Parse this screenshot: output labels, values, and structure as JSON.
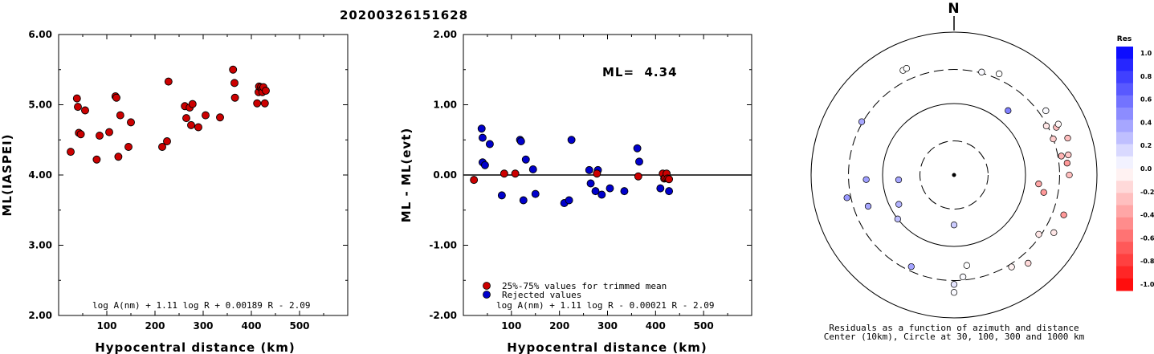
{
  "title": "20200326151628",
  "chart_data": [
    {
      "type": "scatter",
      "xlabel": "Hypocentral distance (km)",
      "ylabel": "ML(IASPEI)",
      "xlim": [
        0,
        600
      ],
      "ylim": [
        2.0,
        6.0
      ],
      "x_ticks": [
        "100",
        "200",
        "300",
        "400",
        "500"
      ],
      "y_ticks": [
        "2.00",
        "3.00",
        "4.00",
        "5.00",
        "6.00"
      ],
      "formula": "log A(nm) + 1.11 log R + 0.00189 R - 2.09",
      "series": [
        {
          "color": "#cc0000",
          "points": [
            [
              25,
              4.33
            ],
            [
              38,
              5.09
            ],
            [
              40,
              4.97
            ],
            [
              42,
              4.6
            ],
            [
              46,
              4.58
            ],
            [
              55,
              4.92
            ],
            [
              79,
              4.22
            ],
            [
              85,
              4.56
            ],
            [
              105,
              4.61
            ],
            [
              118,
              5.12
            ],
            [
              120,
              5.1
            ],
            [
              124,
              4.26
            ],
            [
              128,
              4.85
            ],
            [
              145,
              4.4
            ],
            [
              150,
              4.75
            ],
            [
              215,
              4.4
            ],
            [
              225,
              4.48
            ],
            [
              228,
              5.33
            ],
            [
              262,
              4.98
            ],
            [
              265,
              4.81
            ],
            [
              272,
              4.96
            ],
            [
              275,
              4.71
            ],
            [
              278,
              5.01
            ],
            [
              290,
              4.68
            ],
            [
              305,
              4.85
            ],
            [
              335,
              4.82
            ],
            [
              362,
              5.5
            ],
            [
              365,
              5.31
            ],
            [
              366,
              5.1
            ],
            [
              412,
              5.02
            ],
            [
              415,
              5.18
            ],
            [
              416,
              5.26
            ],
            [
              420,
              5.25
            ],
            [
              422,
              5.22
            ],
            [
              423,
              5.18
            ],
            [
              425,
              5.25
            ],
            [
              428,
              5.02
            ],
            [
              430,
              5.2
            ]
          ]
        }
      ]
    },
    {
      "type": "scatter",
      "xlabel": "Hypocentral distance (km)",
      "ylabel": "ML - ML(evt)",
      "xlim": [
        0,
        600
      ],
      "ylim": [
        -2.0,
        2.0
      ],
      "x_ticks": [
        "100",
        "200",
        "300",
        "400",
        "500"
      ],
      "y_ticks": [
        "-2.00",
        "-1.00",
        "0.00",
        "1.00",
        "2.00"
      ],
      "annotation": "ML=  4.34",
      "formula": "log A(nm) + 1.11 log R - 0.00021 R - 2.09",
      "legend": [
        {
          "label": "25%-75% values for trimmed mean",
          "color": "#cc0000"
        },
        {
          "label": "Rejected values",
          "color": "#0000cc"
        }
      ],
      "series": [
        {
          "name": "25%-75% values for trimmed mean",
          "color": "#cc0000",
          "points": [
            [
              22,
              -0.07
            ],
            [
              85,
              0.02
            ],
            [
              108,
              0.02
            ],
            [
              278,
              0.02
            ],
            [
              364,
              -0.02
            ],
            [
              415,
              0.02
            ],
            [
              418,
              -0.05
            ],
            [
              420,
              -0.04
            ],
            [
              423,
              0.02
            ],
            [
              425,
              -0.05
            ],
            [
              428,
              -0.06
            ]
          ]
        },
        {
          "name": "Rejected values",
          "color": "#0000cc",
          "points": [
            [
              38,
              0.66
            ],
            [
              40,
              0.53
            ],
            [
              40,
              0.18
            ],
            [
              45,
              0.14
            ],
            [
              55,
              0.44
            ],
            [
              80,
              -0.29
            ],
            [
              118,
              0.5
            ],
            [
              120,
              0.48
            ],
            [
              125,
              -0.36
            ],
            [
              130,
              0.22
            ],
            [
              145,
              0.08
            ],
            [
              150,
              -0.27
            ],
            [
              210,
              -0.4
            ],
            [
              220,
              -0.36
            ],
            [
              225,
              0.5
            ],
            [
              262,
              0.07
            ],
            [
              265,
              -0.12
            ],
            [
              275,
              -0.23
            ],
            [
              280,
              0.07
            ],
            [
              288,
              -0.28
            ],
            [
              305,
              -0.19
            ],
            [
              335,
              -0.23
            ],
            [
              362,
              0.38
            ],
            [
              366,
              0.19
            ],
            [
              410,
              -0.19
            ],
            [
              428,
              -0.23
            ]
          ]
        }
      ]
    },
    {
      "type": "polar-scatter",
      "north_label": "N",
      "caption_line1": "Residuals as a function of azimuth and distance",
      "caption_line2": "Center (10km), Circle at 30, 100, 300 and 1000 km",
      "ring_distances_km": [
        30,
        100,
        300,
        1000
      ],
      "colorbar_title": "Res",
      "colorbar_ticks": [
        "1.0",
        "0.8",
        "0.6",
        "0.4",
        "0.2",
        "0.0",
        "-0.2",
        "-0.4",
        "-0.6",
        "-0.8",
        "-1.0"
      ],
      "points": [
        {
          "azimuth": 334,
          "distance_km": 425,
          "residual": 0.0
        },
        {
          "azimuth": 336,
          "distance_km": 430,
          "residual": 0.0
        },
        {
          "azimuth": 15,
          "distance_km": 310,
          "residual": 0.02
        },
        {
          "azimuth": 24,
          "distance_km": 355,
          "residual": 0.0
        },
        {
          "azimuth": 55,
          "distance_km": 370,
          "residual": 0.02
        },
        {
          "azimuth": 40,
          "distance_km": 150,
          "residual": 0.5
        },
        {
          "azimuth": 62,
          "distance_km": 290,
          "residual": -0.1
        },
        {
          "azimuth": 65,
          "distance_km": 380,
          "residual": -0.25
        },
        {
          "azimuth": 64,
          "distance_km": 420,
          "residual": -0.03
        },
        {
          "azimuth": 70,
          "distance_km": 300,
          "residual": -0.2
        },
        {
          "azimuth": 72,
          "distance_km": 470,
          "residual": -0.25
        },
        {
          "azimuth": 80,
          "distance_km": 420,
          "residual": -0.22
        },
        {
          "azimuth": 80,
          "distance_km": 335,
          "residual": -0.3
        },
        {
          "azimuth": 84,
          "distance_km": 390,
          "residual": -0.4
        },
        {
          "azimuth": 90,
          "distance_km": 410,
          "residual": -0.25
        },
        {
          "azimuth": 96,
          "distance_km": 155,
          "residual": -0.35
        },
        {
          "azimuth": 101,
          "distance_km": 190,
          "residual": -0.4
        },
        {
          "azimuth": 110,
          "distance_km": 430,
          "residual": -0.4
        },
        {
          "azimuth": 120,
          "distance_km": 410,
          "residual": -0.1
        },
        {
          "azimuth": 125,
          "distance_km": 280,
          "residual": -0.1
        },
        {
          "azimuth": 140,
          "distance_km": 410,
          "residual": -0.15
        },
        {
          "azimuth": 148,
          "distance_km": 330,
          "residual": -0.05
        },
        {
          "azimuth": 172,
          "distance_km": 190,
          "residual": 0.0
        },
        {
          "azimuth": 175,
          "distance_km": 270,
          "residual": 0.02
        },
        {
          "azimuth": 180,
          "distance_km": 340,
          "residual": 0.1
        },
        {
          "azimuth": 180,
          "distance_km": 440,
          "residual": 0.02
        },
        {
          "azimuth": 180,
          "distance_km": 50,
          "residual": 0.2
        },
        {
          "azimuth": 205,
          "distance_km": 260,
          "residual": 0.36
        },
        {
          "azimuth": 232,
          "distance_km": 100,
          "residual": 0.25
        },
        {
          "azimuth": 242,
          "distance_km": 75,
          "residual": 0.3
        },
        {
          "azimuth": 250,
          "distance_km": 190,
          "residual": 0.35
        },
        {
          "azimuth": 258,
          "distance_km": 340,
          "residual": 0.4
        },
        {
          "azimuth": 265,
          "distance_km": 60,
          "residual": 0.35
        },
        {
          "azimuth": 267,
          "distance_km": 170,
          "residual": 0.38
        },
        {
          "azimuth": 300,
          "distance_km": 310,
          "residual": 0.34
        }
      ]
    }
  ]
}
